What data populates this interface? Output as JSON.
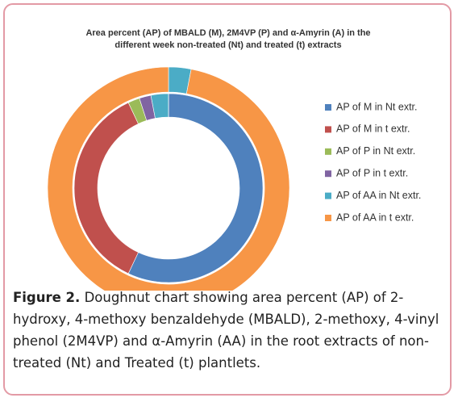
{
  "chart_data": {
    "type": "doughnut",
    "title": [
      "Area percent (AP) of MBALD (M), 2M4VP (P) and α-Amyrin (A)  in the",
      "different week  non-treated (Nt) and treated (t) extracts"
    ],
    "categories": [
      "AP of M in Nt extr.",
      "AP of M in t extr.",
      "AP of P in Nt extr.",
      "AP of P in t extr.",
      "AP of AA in Nt extr.",
      "AP of AA in t extr."
    ],
    "colors": [
      "#4f81bd",
      "#c0504d",
      "#9bbb59",
      "#8064a2",
      "#4bacc6",
      "#f79646"
    ],
    "series": [
      {
        "values": [
          57,
          36,
          2,
          2,
          3,
          0
        ]
      },
      {
        "values": [
          0,
          0,
          0,
          0,
          3,
          97
        ]
      }
    ]
  },
  "caption": {
    "label": "Figure 2.",
    "text": "Doughnut chart showing area percent (AP) of 2-hydroxy, 4-methoxy benzaldehyde (MBALD), 2-methoxy, 4-vinyl phenol (2M4VP) and α-Amyrin (AA) in the root extracts of non-treated (Nt) and Treated (t) plantlets."
  }
}
